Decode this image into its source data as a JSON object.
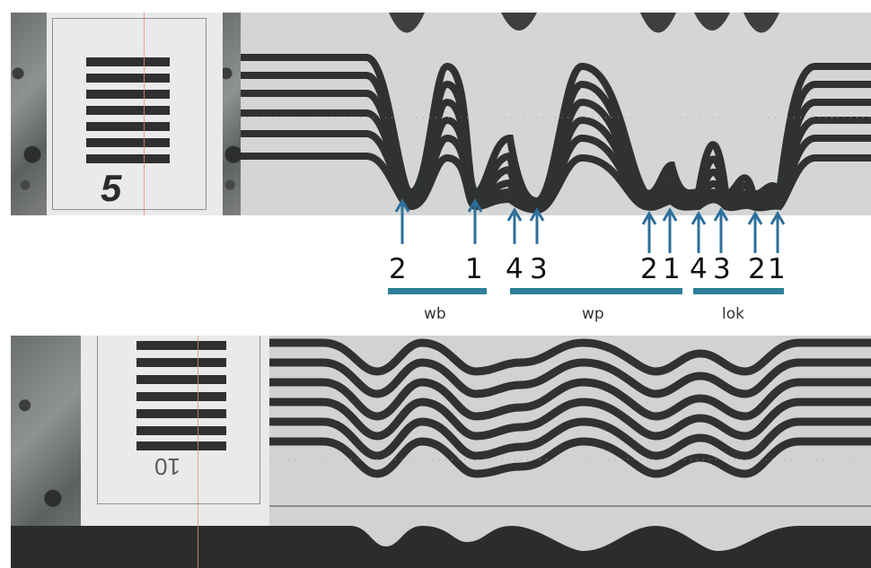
{
  "top_panel": {
    "card_number": "5"
  },
  "bottom_panel": {
    "card_number": "10"
  },
  "arrow_labels": [
    "2",
    "1",
    "4",
    "3",
    "2",
    "1",
    "4",
    "3",
    "2",
    "1"
  ],
  "groups": [
    {
      "label": "wb"
    },
    {
      "label": "wp"
    },
    {
      "label": "lok"
    }
  ],
  "colors": {
    "arrow": "#2e6f9a",
    "bar": "#2e7f98",
    "stripe": "#2e3130",
    "redline": "#e58c7c"
  }
}
